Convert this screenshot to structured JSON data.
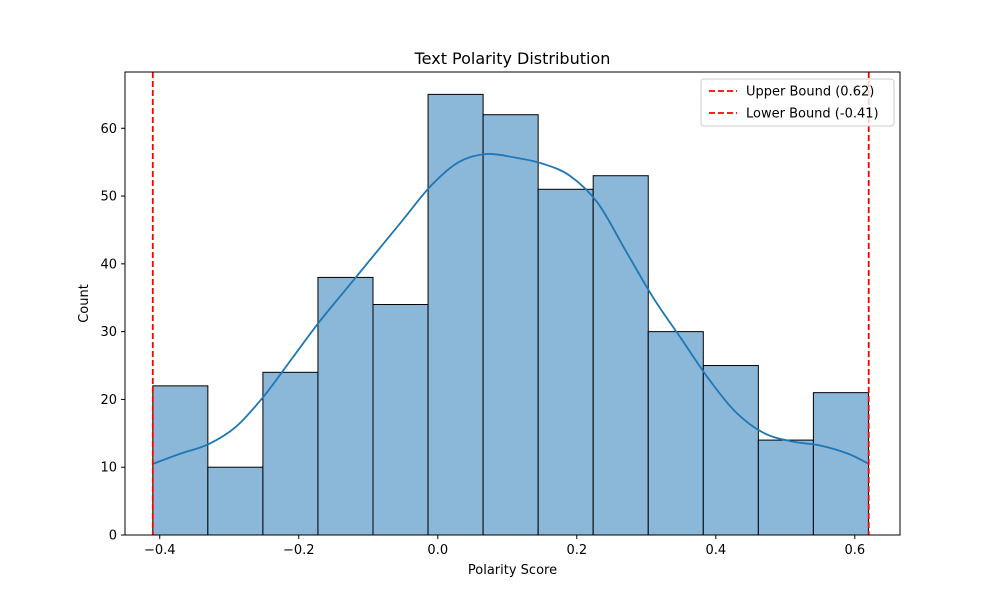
{
  "chart_data": {
    "type": "histogram",
    "title": "Text Polarity Distribution",
    "xlabel": "Polarity Score",
    "ylabel": "Count",
    "xlim": [
      -0.45,
      0.665
    ],
    "ylim": [
      0,
      68.3
    ],
    "xticks": [
      -0.4,
      -0.2,
      0.0,
      0.2,
      0.4,
      0.6
    ],
    "xtick_labels": [
      "−0.4",
      "−0.2",
      "0.0",
      "0.2",
      "0.4",
      "0.6"
    ],
    "yticks": [
      0,
      10,
      20,
      30,
      40,
      50,
      60
    ],
    "ytick_labels": [
      "0",
      "10",
      "20",
      "30",
      "40",
      "50",
      "60"
    ],
    "bin_start": -0.41,
    "bin_width": 0.0792,
    "counts": [
      22,
      10,
      24,
      38,
      34,
      65,
      62,
      51,
      53,
      30,
      25,
      14,
      21
    ],
    "bar_color": "#8bb8d9",
    "bar_edge_color": "#000000",
    "kde": {
      "color": "#1f77b4",
      "x": [
        -0.41,
        -0.37,
        -0.33,
        -0.29,
        -0.25,
        -0.21,
        -0.17,
        -0.13,
        -0.09,
        -0.05,
        -0.01,
        0.03,
        0.07,
        0.11,
        0.15,
        0.19,
        0.23,
        0.27,
        0.31,
        0.35,
        0.39,
        0.43,
        0.47,
        0.51,
        0.55,
        0.59,
        0.62
      ],
      "y": [
        10.5,
        12,
        13.4,
        16,
        20.5,
        26,
        31.5,
        36.5,
        41.5,
        46.5,
        51.5,
        55,
        56.2,
        55.7,
        54.8,
        53,
        49,
        42,
        35,
        29,
        23,
        18,
        15,
        13.8,
        13.2,
        12,
        10.5
      ]
    },
    "reference_lines": [
      {
        "label": "Upper Bound (0.62)",
        "x": 0.62,
        "color": "#ff0000",
        "style": "dashed"
      },
      {
        "label": "Lower Bound (-0.41)",
        "x": -0.41,
        "color": "#ff0000",
        "style": "dashed"
      }
    ],
    "legend_position": "upper right",
    "grid": false
  }
}
